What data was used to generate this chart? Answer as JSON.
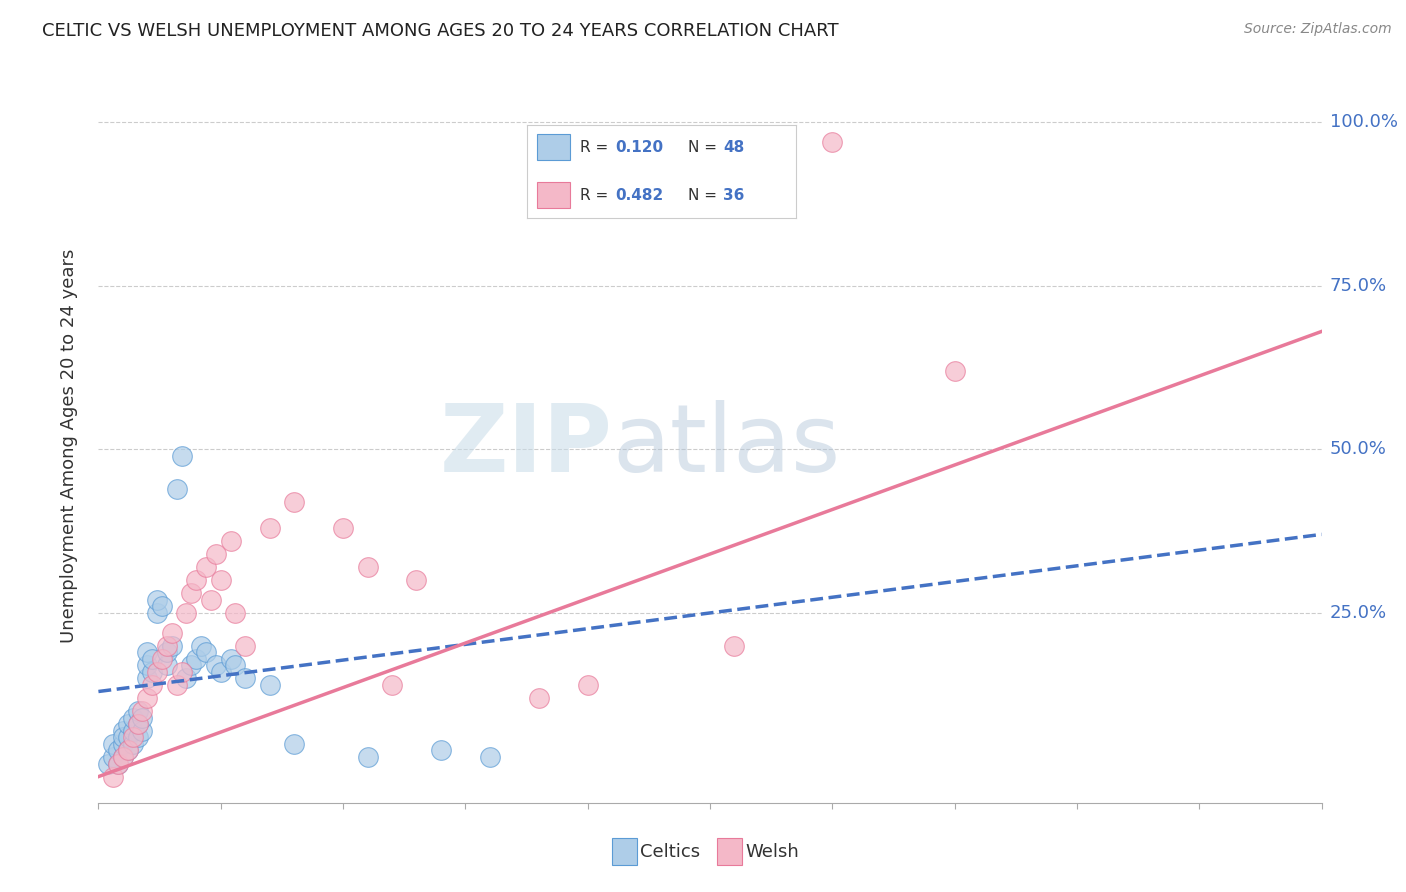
{
  "title": "CELTIC VS WELSH UNEMPLOYMENT AMONG AGES 20 TO 24 YEARS CORRELATION CHART",
  "source": "Source: ZipAtlas.com",
  "ylabel": "Unemployment Among Ages 20 to 24 years",
  "watermark_zip": "ZIP",
  "watermark_atlas": "atlas",
  "celtics_color": "#aecde8",
  "celtics_edge_color": "#5b9bd5",
  "welsh_color": "#f4b8c8",
  "welsh_edge_color": "#e87a9a",
  "celtics_line_color": "#4472C4",
  "welsh_line_color": "#e87a9a",
  "r_n_color": "#4472C4",
  "xlim": [
    0.0,
    0.25
  ],
  "ylim": [
    -0.04,
    1.05
  ],
  "celtics_scatter": [
    [
      0.002,
      0.02
    ],
    [
      0.003,
      0.03
    ],
    [
      0.003,
      0.05
    ],
    [
      0.004,
      0.02
    ],
    [
      0.004,
      0.04
    ],
    [
      0.005,
      0.03
    ],
    [
      0.005,
      0.05
    ],
    [
      0.005,
      0.07
    ],
    [
      0.005,
      0.06
    ],
    [
      0.006,
      0.04
    ],
    [
      0.006,
      0.06
    ],
    [
      0.006,
      0.08
    ],
    [
      0.007,
      0.05
    ],
    [
      0.007,
      0.07
    ],
    [
      0.007,
      0.09
    ],
    [
      0.008,
      0.06
    ],
    [
      0.008,
      0.08
    ],
    [
      0.008,
      0.1
    ],
    [
      0.009,
      0.07
    ],
    [
      0.009,
      0.09
    ],
    [
      0.01,
      0.15
    ],
    [
      0.01,
      0.17
    ],
    [
      0.01,
      0.19
    ],
    [
      0.011,
      0.16
    ],
    [
      0.011,
      0.18
    ],
    [
      0.012,
      0.25
    ],
    [
      0.012,
      0.27
    ],
    [
      0.013,
      0.26
    ],
    [
      0.014,
      0.17
    ],
    [
      0.014,
      0.19
    ],
    [
      0.015,
      0.2
    ],
    [
      0.016,
      0.44
    ],
    [
      0.017,
      0.49
    ],
    [
      0.018,
      0.15
    ],
    [
      0.019,
      0.17
    ],
    [
      0.02,
      0.18
    ],
    [
      0.021,
      0.2
    ],
    [
      0.022,
      0.19
    ],
    [
      0.024,
      0.17
    ],
    [
      0.025,
      0.16
    ],
    [
      0.027,
      0.18
    ],
    [
      0.028,
      0.17
    ],
    [
      0.03,
      0.15
    ],
    [
      0.035,
      0.14
    ],
    [
      0.04,
      0.05
    ],
    [
      0.055,
      0.03
    ],
    [
      0.07,
      0.04
    ],
    [
      0.08,
      0.03
    ]
  ],
  "welsh_scatter": [
    [
      0.003,
      0.0
    ],
    [
      0.004,
      0.02
    ],
    [
      0.005,
      0.03
    ],
    [
      0.006,
      0.04
    ],
    [
      0.007,
      0.06
    ],
    [
      0.008,
      0.08
    ],
    [
      0.009,
      0.1
    ],
    [
      0.01,
      0.12
    ],
    [
      0.011,
      0.14
    ],
    [
      0.012,
      0.16
    ],
    [
      0.013,
      0.18
    ],
    [
      0.014,
      0.2
    ],
    [
      0.015,
      0.22
    ],
    [
      0.016,
      0.14
    ],
    [
      0.017,
      0.16
    ],
    [
      0.018,
      0.25
    ],
    [
      0.019,
      0.28
    ],
    [
      0.02,
      0.3
    ],
    [
      0.022,
      0.32
    ],
    [
      0.023,
      0.27
    ],
    [
      0.024,
      0.34
    ],
    [
      0.025,
      0.3
    ],
    [
      0.027,
      0.36
    ],
    [
      0.028,
      0.25
    ],
    [
      0.03,
      0.2
    ],
    [
      0.035,
      0.38
    ],
    [
      0.04,
      0.42
    ],
    [
      0.05,
      0.38
    ],
    [
      0.055,
      0.32
    ],
    [
      0.06,
      0.14
    ],
    [
      0.065,
      0.3
    ],
    [
      0.09,
      0.12
    ],
    [
      0.1,
      0.14
    ],
    [
      0.13,
      0.2
    ],
    [
      0.15,
      0.97
    ],
    [
      0.175,
      0.62
    ]
  ],
  "celtics_trend_x": [
    0.0,
    0.25
  ],
  "celtics_trend_y": [
    0.13,
    0.37
  ],
  "welsh_trend_x": [
    0.0,
    0.25
  ],
  "welsh_trend_y": [
    0.0,
    0.68
  ],
  "background_color": "#ffffff",
  "grid_color": "#cccccc"
}
